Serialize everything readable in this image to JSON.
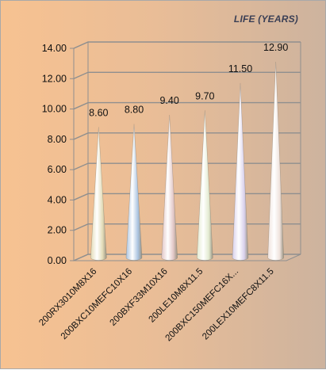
{
  "chart_data": {
    "type": "bar",
    "title": "LIFE (YEARS)",
    "categories": [
      "200RX3010M8X16",
      "200BXC10MEFC10X16",
      "200BXF33M10X16",
      "200LE10M8X11.5",
      "200BXC150MEFC16X...",
      "200LEX10MEFC8X11.5"
    ],
    "values": [
      8.6,
      8.8,
      9.4,
      9.7,
      11.5,
      12.9
    ],
    "value_labels": [
      "8.60",
      "8.80",
      "9.40",
      "9.70",
      "11.50",
      "12.90"
    ],
    "y_ticks": [
      "0.00",
      "2.00",
      "4.00",
      "6.00",
      "8.00",
      "10.00",
      "12.00",
      "14.00"
    ],
    "ylim": [
      0,
      14
    ],
    "grid": true,
    "legend": "none",
    "bar_shape": "cone",
    "bar_colors": [
      "#e3dcb8",
      "#a9c3e0",
      "#e2c6c6",
      "#e3ead0",
      "#d8d0ec",
      "#efe2dc"
    ]
  }
}
